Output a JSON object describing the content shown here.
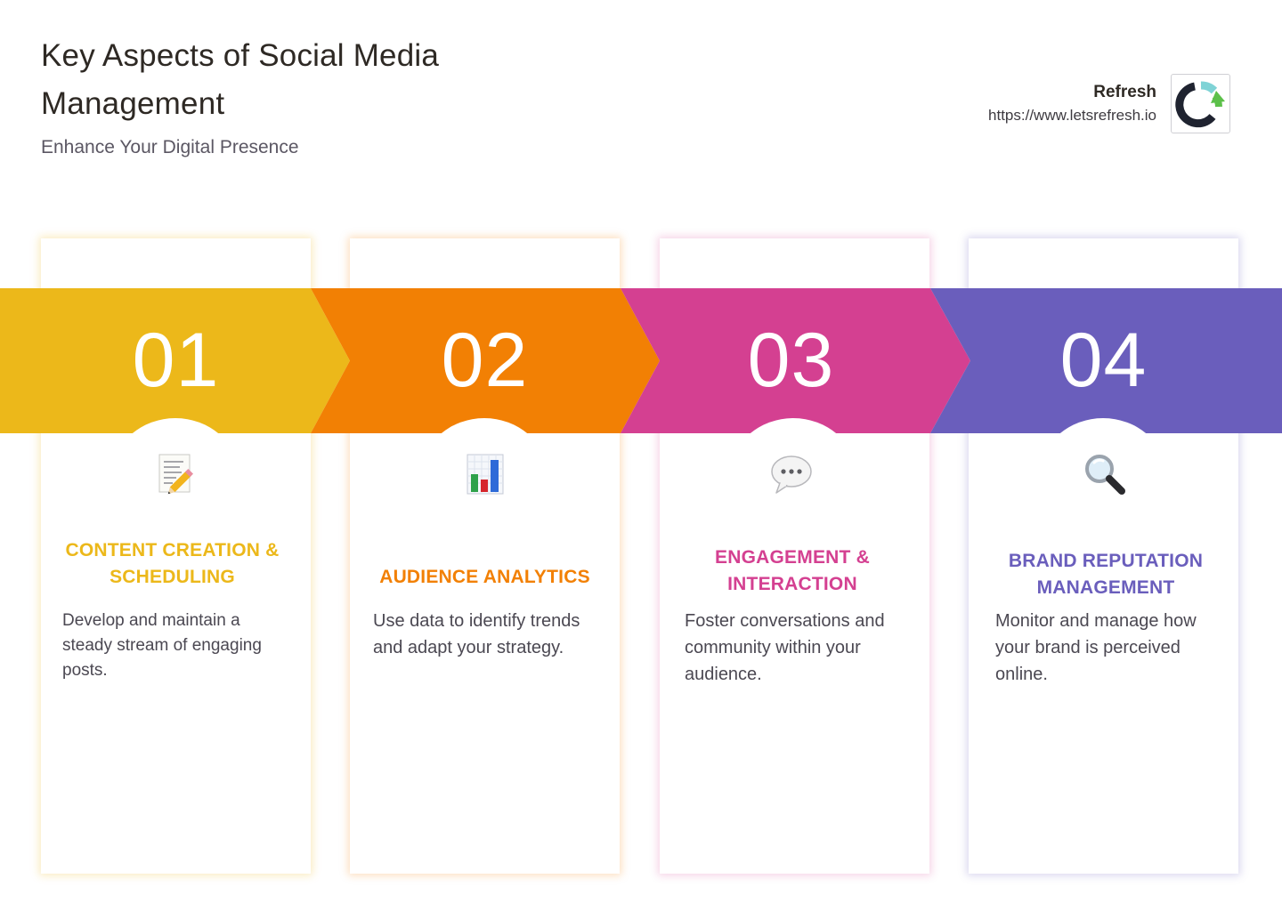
{
  "header": {
    "title": "Key Aspects of Social Media Management",
    "subtitle": "Enhance Your Digital Presence"
  },
  "brand": {
    "name": "Refresh",
    "url": "https://www.letsrefresh.io"
  },
  "colors": {
    "step1": "#ECB81A",
    "step2": "#F28004",
    "step3": "#D44091",
    "step4": "#6A5EBC",
    "text": "#2E2924",
    "muted": "#4B4852"
  },
  "steps": [
    {
      "number": "01",
      "icon": "memo-pencil-icon",
      "heading": "CONTENT CREATION & SCHEDULING",
      "description": "Develop and maintain a steady stream of engaging posts."
    },
    {
      "number": "02",
      "icon": "bar-chart-icon",
      "heading": "AUDIENCE ANALYTICS",
      "description": "Use data to identify trends and adapt your strategy."
    },
    {
      "number": "03",
      "icon": "speech-bubble-icon",
      "heading": "ENGAGEMENT & INTERACTION",
      "description": "Foster conversations and community within your audience."
    },
    {
      "number": "04",
      "icon": "magnifying-glass-icon",
      "heading": "BRAND REPUTATION MANAGEMENT",
      "description": "Monitor and manage how your brand is perceived online."
    }
  ]
}
